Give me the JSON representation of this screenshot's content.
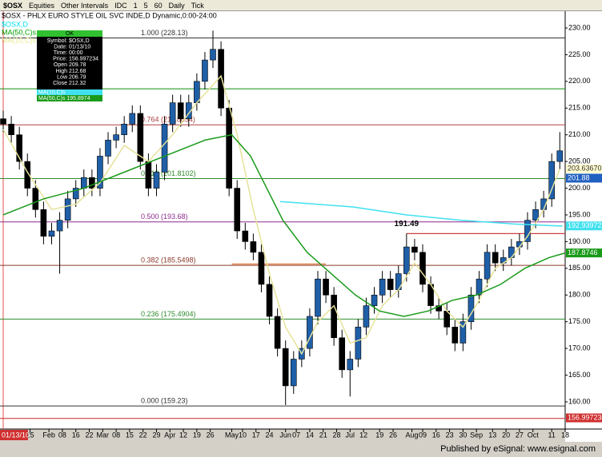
{
  "toolbar": {
    "symbol": "$OSX",
    "items": [
      "Equities",
      "Other Intervals",
      "IDC",
      "1",
      "5",
      "60",
      "Daily",
      "Tick"
    ]
  },
  "chart_data": {
    "type": "candlestick",
    "title": "$OSX - PHLX EURO STYLE OIL SVC INDE,D Dynamic,0:00-24:00",
    "legend": [
      {
        "name": "$OSX,D",
        "color": "#00e5ee"
      },
      {
        "name": "MA(50,C)s",
        "color": "#00a000"
      },
      {
        "name": "MA(10,C)s",
        "color": "#e8e890"
      }
    ],
    "info_box": {
      "header": "OK",
      "rows": [
        [
          "Symbol:",
          "$OSX,D"
        ],
        [
          "Date:",
          "01/13/10"
        ],
        [
          "Time:",
          "00:00"
        ],
        [
          "Price:",
          "156.997234"
        ],
        [
          "Open",
          "209.78"
        ],
        [
          "High",
          "212.68"
        ],
        [
          "Low",
          "206.79"
        ],
        [
          "Close",
          "212.32"
        ]
      ],
      "ma10": "MA(10,C)s",
      "ma50": "MA(50,C)s 195.8974"
    },
    "cursor_date": "01/13/10",
    "xlim": [
      -1.2,
      209
    ],
    "ylim": [
      154.91,
      233.14
    ],
    "xticks": [
      {
        "value": 10,
        "label": "25"
      },
      {
        "value": 17,
        "label": "Feb"
      },
      {
        "value": 22,
        "label": "08"
      },
      {
        "value": 27,
        "label": "16"
      },
      {
        "value": 32,
        "label": "22"
      },
      {
        "value": 37,
        "label": "Mar"
      },
      {
        "value": 42,
        "label": "08"
      },
      {
        "value": 47,
        "label": "15"
      },
      {
        "value": 52,
        "label": "22"
      },
      {
        "value": 57,
        "label": "29"
      },
      {
        "value": 62,
        "label": "Apr"
      },
      {
        "value": 67,
        "label": "12"
      },
      {
        "value": 72,
        "label": "19"
      },
      {
        "value": 77,
        "label": "26"
      },
      {
        "value": 85,
        "label": "May"
      },
      {
        "value": 89,
        "label": "10"
      },
      {
        "value": 94,
        "label": "17"
      },
      {
        "value": 99,
        "label": "24"
      },
      {
        "value": 105,
        "label": "Jun"
      },
      {
        "value": 109,
        "label": "07"
      },
      {
        "value": 114,
        "label": "14"
      },
      {
        "value": 119,
        "label": "21"
      },
      {
        "value": 124,
        "label": "28"
      },
      {
        "value": 129,
        "label": "Jul"
      },
      {
        "value": 134,
        "label": "12"
      },
      {
        "value": 140,
        "label": "19"
      },
      {
        "value": 145,
        "label": "26"
      },
      {
        "value": 152,
        "label": "Aug"
      },
      {
        "value": 156,
        "label": "09"
      },
      {
        "value": 161,
        "label": "16"
      },
      {
        "value": 166,
        "label": "23"
      },
      {
        "value": 171,
        "label": "30"
      },
      {
        "value": 176,
        "label": "Sep"
      },
      {
        "value": 182,
        "label": "13"
      },
      {
        "value": 187,
        "label": "20"
      },
      {
        "value": 192,
        "label": "27"
      },
      {
        "value": 197,
        "label": "Oct"
      },
      {
        "value": 204,
        "label": "11"
      },
      {
        "value": 209,
        "label": "18"
      }
    ],
    "yticks": [
      {
        "value": 160,
        "label": "160.00"
      },
      {
        "value": 165,
        "label": "165.00"
      },
      {
        "value": 170,
        "label": "170.00"
      },
      {
        "value": 175,
        "label": "175.00"
      },
      {
        "value": 180,
        "label": "180.00"
      },
      {
        "value": 185,
        "label": "185.00"
      },
      {
        "value": 190,
        "label": "190.00"
      },
      {
        "value": 195,
        "label": "195.00"
      },
      {
        "value": 200,
        "label": "200.00"
      },
      {
        "value": 205,
        "label": "205.00"
      },
      {
        "value": 210,
        "label": "210.00"
      },
      {
        "value": 215,
        "label": "215.00"
      },
      {
        "value": 220,
        "label": "220.00"
      },
      {
        "value": 225,
        "label": "225.00"
      },
      {
        "value": 230,
        "label": "230.00"
      }
    ],
    "up_color": "#1f5fa8",
    "down_color": "#000000",
    "x": [
      0,
      3,
      6,
      9,
      12,
      15,
      18,
      21,
      24,
      27,
      30,
      33,
      36,
      39,
      42,
      45,
      48,
      51,
      54,
      57,
      60,
      63,
      66,
      69,
      72,
      75,
      78,
      81,
      84,
      87,
      90,
      93,
      96,
      99,
      102,
      105,
      108,
      111,
      114,
      117,
      120,
      123,
      126,
      129,
      132,
      135,
      138,
      141,
      144,
      147,
      150,
      153,
      156,
      159,
      162,
      165,
      168,
      171,
      174,
      177,
      180,
      183,
      186,
      189,
      192,
      195,
      198,
      201,
      204,
      207
    ],
    "open": [
      213,
      212,
      210,
      205,
      200,
      196,
      191,
      192,
      194,
      198,
      200,
      202,
      200,
      206,
      209,
      210,
      212,
      214,
      205,
      200,
      203,
      212,
      216,
      213,
      216,
      220,
      224,
      226,
      215,
      200,
      192,
      190,
      188,
      182,
      176,
      170,
      163,
      168,
      170,
      176,
      183,
      180,
      172,
      166,
      168,
      174,
      178,
      180,
      183,
      181,
      184,
      189,
      188,
      182,
      178,
      177,
      174,
      171,
      175,
      180,
      183,
      188,
      186,
      187,
      189,
      190,
      194,
      196,
      198,
      205
    ],
    "high": [
      214.5,
      213.5,
      211.5,
      206.5,
      201.5,
      197.5,
      193.5,
      195.5,
      199.5,
      201.5,
      203.5,
      203.5,
      207.5,
      210.5,
      211.5,
      213.5,
      215.5,
      215.5,
      206.5,
      204.5,
      213.5,
      217.5,
      217.5,
      217.5,
      221.5,
      225.5,
      229.5,
      227.5,
      216.5,
      201.5,
      193.5,
      191.5,
      189.5,
      183.5,
      177.5,
      171.5,
      169.5,
      171.5,
      177.5,
      184.5,
      184.5,
      181.5,
      173.5,
      169.5,
      175.5,
      179.5,
      181.5,
      184.5,
      184.5,
      185.5,
      191.5,
      190.5,
      189.5,
      183.5,
      179.5,
      178.5,
      175.5,
      176.5,
      181.5,
      184.5,
      189.5,
      189.5,
      188.5,
      190.5,
      191.5,
      195.5,
      197.5,
      199.5,
      206.5,
      210.5
    ],
    "low": [
      210.5,
      208.5,
      203.5,
      198.5,
      194.5,
      189.5,
      189.5,
      184,
      192.5,
      196.5,
      198.5,
      198.5,
      198.5,
      204.5,
      207.5,
      208.5,
      210.5,
      203.5,
      198.5,
      198.5,
      201.5,
      210.5,
      211.5,
      211.5,
      214.5,
      218.5,
      222.5,
      213.5,
      198.5,
      190.5,
      188.5,
      186.5,
      180.5,
      174.5,
      168.5,
      159.4,
      161.5,
      166.5,
      168.5,
      174.5,
      178.5,
      170.5,
      164.5,
      161,
      166.5,
      172.5,
      176.5,
      178.5,
      179.5,
      179.5,
      182.5,
      186.5,
      180.5,
      176.5,
      175.5,
      172.5,
      169.5,
      169.5,
      173.5,
      178.5,
      181.5,
      184.5,
      184.5,
      185.5,
      187.5,
      188.5,
      192.5,
      194.5,
      196.5,
      203.5
    ],
    "close": [
      212,
      210,
      205,
      200,
      196,
      191,
      192,
      194,
      198,
      200,
      202,
      200,
      206,
      209,
      210,
      212,
      214,
      205,
      200,
      203,
      212,
      216,
      213,
      216,
      220,
      224,
      226,
      215,
      200,
      192,
      190,
      188,
      182,
      176,
      170,
      163,
      168,
      170,
      176,
      183,
      180,
      172,
      166,
      168,
      174,
      178,
      180,
      183,
      181,
      184,
      189,
      188,
      182,
      178,
      177,
      174,
      171,
      175,
      180,
      183,
      188,
      186,
      187,
      189,
      190,
      194,
      196,
      198,
      205,
      207
    ],
    "lines": [
      {
        "name": "MA(10,C)s",
        "color": "#e6e29a",
        "x": [
          0,
          9,
          18,
          27,
          36,
          45,
          54,
          63,
          72,
          81,
          87,
          93,
          99,
          105,
          111,
          117,
          123,
          129,
          135,
          141,
          147,
          153,
          159,
          165,
          171,
          177,
          183,
          189,
          195,
          201,
          207
        ],
        "values": [
          211,
          203,
          196,
          197,
          201,
          208,
          205,
          210,
          216,
          221,
          210,
          196,
          184,
          174,
          169,
          175,
          178,
          171,
          172,
          178,
          181,
          186,
          182,
          177,
          174,
          179,
          185,
          187,
          191,
          196,
          203.6
        ]
      },
      {
        "name": "MA(50,C)s",
        "color": "#1a9a1a",
        "x": [
          0,
          15,
          30,
          45,
          60,
          75,
          85,
          92,
          98,
          104,
          113,
          122,
          131,
          140,
          149,
          158,
          167,
          176,
          185,
          194,
          203,
          209
        ],
        "values": [
          195,
          198,
          200,
          203,
          206,
          209,
          210,
          206,
          200,
          194,
          188,
          184,
          180,
          177,
          176,
          177,
          179,
          180,
          182,
          185,
          187,
          187.87
        ]
      },
      {
        "name": "$OSX,D",
        "color": "#40e0f0",
        "x": [
          103,
          130,
          150,
          170,
          190,
          208
        ],
        "values": [
          197.5,
          196.5,
          195,
          194,
          193.3,
          192.9
        ]
      }
    ],
    "fib": [
      {
        "label": "1.000 (228.13)",
        "value": 228.13,
        "color": "#333333"
      },
      {
        "label": "0.764 (211.8654)",
        "value": 211.87,
        "color": "#b04040"
      },
      {
        "label": "0.618 (201.8102)",
        "value": 201.81,
        "color": "#2e8b2e"
      },
      {
        "label": "0.500 (193.68)",
        "value": 193.68,
        "color": "#8b2a8b"
      },
      {
        "label": "0.382 (185.5498)",
        "value": 185.55,
        "color": "#8b3a2a"
      },
      {
        "label": "0.236 (175.4904)",
        "value": 175.49,
        "color": "#2e8b2e"
      },
      {
        "label": "0.000 (159.23)",
        "value": 159.23,
        "color": "#333333"
      }
    ],
    "levels": [
      {
        "value": 218.6,
        "color": "#2a9a2a",
        "from": -1.2,
        "to": 209
      },
      {
        "value": 191.5,
        "color": "#d04040",
        "from": 150,
        "to": 209
      },
      {
        "value": 156.9,
        "color": "#d04040",
        "from": -1.2,
        "to": 209
      },
      {
        "value": 185.8,
        "color": "#e07030",
        "from": 85,
        "to": 120
      }
    ],
    "annotation": {
      "text": "191.49",
      "x": 150,
      "value": 191.49
    },
    "price_labels": [
      {
        "value": 203.636702,
        "bg": "#fffbd0",
        "fg": "#333"
      },
      {
        "value": 201.88,
        "bg": "#2060c0",
        "fg": "#fff"
      },
      {
        "value": 192.93972,
        "bg": "#40e0f0",
        "fg": "#fff"
      },
      {
        "value": 187.8746,
        "bg": "#1a9a1a",
        "fg": "#fff"
      },
      {
        "value": 156.997234,
        "bg": "#d03030",
        "fg": "#fff"
      }
    ]
  },
  "footer": "Published by eSignal: www.esignal.com"
}
